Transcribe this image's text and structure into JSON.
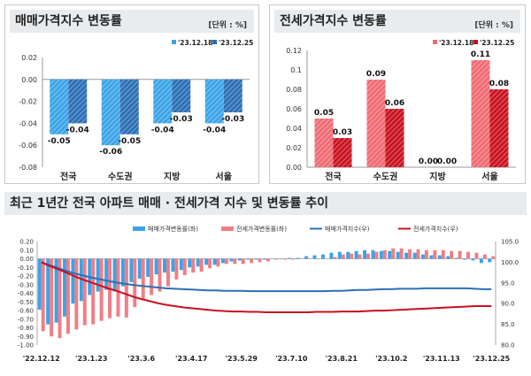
{
  "left_panel": {
    "title": "매매가격지수 변동률",
    "unit": "[단위 : %]"
  },
  "right_panel": {
    "title": "전세가격지수 변동률",
    "unit": "[단위 : %]"
  },
  "bottom_panel": {
    "title": "최근 1년간 전국 아파트 매매 · 전세가격 지수 및 변동률 추이"
  },
  "chart_data": [
    {
      "type": "bar",
      "title": "매매가격지수 변동률",
      "categories": [
        "전국",
        "수도권",
        "지방",
        "서울"
      ],
      "series": [
        {
          "name": "'23.12.18",
          "values": [
            -0.05,
            -0.06,
            -0.04,
            -0.04
          ],
          "color": "#3aa3e8"
        },
        {
          "name": "'23.12.25",
          "values": [
            -0.04,
            -0.05,
            -0.03,
            -0.03
          ],
          "color": "#2a6db5"
        }
      ],
      "data_labels": [
        [
          "-0.05",
          "-0.06",
          "-0.04",
          "-0.04"
        ],
        [
          "-0.04",
          "-0.05",
          "-0.03",
          "-0.03"
        ]
      ],
      "yticks": [
        "0.02",
        "0.00",
        "-0.02",
        "-0.04",
        "-0.06",
        "-0.08"
      ],
      "ylim": [
        -0.08,
        0.02
      ],
      "legend": "top-right"
    },
    {
      "type": "bar",
      "title": "전세가격지수 변동률",
      "categories": [
        "전국",
        "수도권",
        "지방",
        "서울"
      ],
      "series": [
        {
          "name": "'23.12.18",
          "values": [
            0.05,
            0.09,
            0.0,
            0.11
          ],
          "color": "#f06a72"
        },
        {
          "name": "'23.12.25",
          "values": [
            0.03,
            0.06,
            0.0,
            0.08
          ],
          "color": "#c8101e"
        }
      ],
      "data_labels": [
        [
          "0.05",
          "0.09",
          "0.00",
          "0.11"
        ],
        [
          "0.03",
          "0.06",
          "0.00",
          "0.08"
        ]
      ],
      "yticks": [
        "0.12",
        "0.1",
        "0.08",
        "0.06",
        "0.04",
        "0.02",
        "0.00"
      ],
      "ylim": [
        0,
        0.12
      ],
      "legend": "top-right"
    },
    {
      "type": "bar",
      "title": "최근 1년간 전국 아파트 매매 · 전세가격 지수 및 변동률 추이",
      "x": [
        "'22.12.12",
        "'22.12.19",
        "'22.12.26",
        "'23.1.2",
        "'23.1.9",
        "'23.1.16",
        "'23.1.23",
        "'23.1.30",
        "'23.2.6",
        "'23.2.13",
        "'23.2.20",
        "'23.2.27",
        "'23.3.6",
        "'23.3.13",
        "'23.3.20",
        "'23.3.27",
        "'23.4.3",
        "'23.4.10",
        "'23.4.17",
        "'23.4.24",
        "'23.5.1",
        "'23.5.8",
        "'23.5.15",
        "'23.5.22",
        "'23.5.29",
        "'23.6.5",
        "'23.6.12",
        "'23.6.19",
        "'23.6.26",
        "'23.7.3",
        "'23.7.10",
        "'23.7.17",
        "'23.7.24",
        "'23.7.31",
        "'23.8.7",
        "'23.8.14",
        "'23.8.21",
        "'23.8.28",
        "'23.9.4",
        "'23.9.11",
        "'23.9.18",
        "'23.9.25",
        "'23.10.2",
        "'23.10.9",
        "'23.10.16",
        "'23.10.23",
        "'23.10.30",
        "'23.11.6",
        "'23.11.13",
        "'23.11.20",
        "'23.11.27",
        "'23.12.4",
        "'23.12.11",
        "'23.12.18",
        "'23.12.25"
      ],
      "xtick_labels": [
        "'22.12.12",
        "'23.1.23",
        "'23.3.6",
        "'23.4.17",
        "'23.5.29",
        "'23.7.10",
        "'23.8.21",
        "'23.10.2",
        "'23.11.13",
        "'23.12.25"
      ],
      "left_yticks": [
        "0.20",
        "0.10",
        "0.00",
        "-0.10",
        "-0.20",
        "-0.30",
        "-0.40",
        "-0.50",
        "-0.60",
        "-0.70",
        "-0.80",
        "-0.90",
        "-1.00"
      ],
      "right_yticks": [
        "105.0",
        "100.0",
        "95.0",
        "90.0",
        "85.0",
        "80.0"
      ],
      "left_ylim": [
        -1.0,
        0.2
      ],
      "right_ylim": [
        80,
        105
      ],
      "series": [
        {
          "name": "매매가격변동률(좌)",
          "kind": "bar",
          "axis": "left",
          "color": "#3aa3e8",
          "values": [
            -0.59,
            -0.76,
            -0.74,
            -0.67,
            -0.52,
            -0.49,
            -0.42,
            -0.38,
            -0.36,
            -0.38,
            -0.32,
            -0.27,
            -0.23,
            -0.21,
            -0.18,
            -0.16,
            -0.15,
            -0.13,
            -0.1,
            -0.09,
            -0.07,
            -0.07,
            -0.05,
            -0.03,
            -0.02,
            -0.01,
            -0.01,
            -0.01,
            0.0,
            0.0,
            0.01,
            0.01,
            0.03,
            0.04,
            0.05,
            0.07,
            0.08,
            0.08,
            0.09,
            0.1,
            0.1,
            0.09,
            0.09,
            0.08,
            0.07,
            0.07,
            0.05,
            0.04,
            0.04,
            0.03,
            0.01,
            -0.01,
            -0.02,
            -0.05,
            -0.04
          ]
        },
        {
          "name": "전세가격변동률(좌)",
          "kind": "bar",
          "axis": "left",
          "color": "#f07e86",
          "values": [
            -0.84,
            -0.9,
            -0.92,
            -0.87,
            -0.82,
            -0.77,
            -0.76,
            -0.72,
            -0.69,
            -0.67,
            -0.68,
            -0.56,
            -0.48,
            -0.42,
            -0.38,
            -0.32,
            -0.24,
            -0.19,
            -0.16,
            -0.15,
            -0.11,
            -0.09,
            -0.06,
            -0.06,
            -0.06,
            -0.05,
            -0.04,
            -0.03,
            -0.01,
            -0.01,
            -0.01,
            0.0,
            0.0,
            0.0,
            0.0,
            0.02,
            0.05,
            0.06,
            0.05,
            0.06,
            0.08,
            0.1,
            0.12,
            0.12,
            0.11,
            0.11,
            0.1,
            0.1,
            0.1,
            0.09,
            0.09,
            0.08,
            0.07,
            0.05,
            0.03
          ]
        },
        {
          "name": "매매가격지수(우)",
          "kind": "line",
          "axis": "right",
          "color": "#2b6fb8",
          "values": [
            100.0,
            99.3,
            98.6,
            97.9,
            97.3,
            96.8,
            96.3,
            95.9,
            95.5,
            95.1,
            94.8,
            94.5,
            94.3,
            94.1,
            93.9,
            93.7,
            93.6,
            93.5,
            93.4,
            93.3,
            93.2,
            93.2,
            93.1,
            93.1,
            93.1,
            93.0,
            93.0,
            93.0,
            93.0,
            93.0,
            93.0,
            93.0,
            93.0,
            93.0,
            93.0,
            93.1,
            93.1,
            93.2,
            93.3,
            93.3,
            93.4,
            93.5,
            93.5,
            93.6,
            93.6,
            93.6,
            93.7,
            93.7,
            93.7,
            93.7,
            93.7,
            93.7,
            93.6,
            93.5,
            93.5
          ]
        },
        {
          "name": "전세가격지수(우)",
          "kind": "line",
          "axis": "right",
          "color": "#c8101e",
          "values": [
            100.0,
            99.1,
            98.3,
            97.5,
            96.6,
            95.8,
            95.1,
            94.4,
            93.7,
            93.1,
            92.4,
            91.7,
            91.1,
            90.6,
            90.1,
            89.7,
            89.4,
            89.1,
            88.9,
            88.7,
            88.5,
            88.3,
            88.2,
            88.1,
            88.1,
            88.0,
            88.0,
            87.9,
            87.9,
            87.9,
            87.9,
            87.9,
            87.9,
            88.0,
            88.0,
            88.0,
            88.1,
            88.1,
            88.1,
            88.2,
            88.3,
            88.3,
            88.4,
            88.5,
            88.6,
            88.7,
            88.8,
            88.9,
            89.0,
            89.1,
            89.2,
            89.3,
            89.4,
            89.4,
            89.4
          ]
        }
      ],
      "legend": "top-center"
    }
  ]
}
